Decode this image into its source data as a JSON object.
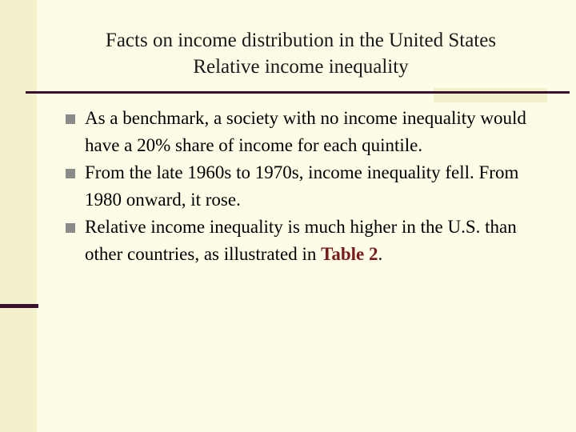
{
  "slide": {
    "title_line1": "Facts on income distribution in the United States",
    "title_line2": "Relative income inequality",
    "bullets": [
      "As a benchmark, a society with no income inequality would have a 20% share of income for each quintile.",
      "From the late 1960s to 1970s, income inequality fell.  From 1980 onward, it rose.",
      "Relative income inequality is much higher in the U.S. than other countries, as illustrated in "
    ],
    "bullet3_link": "Table 2",
    "bullet3_end": ".",
    "colors": {
      "background": "#fdfde7",
      "band": "#f2f1cc",
      "rule": "#3a1030",
      "link": "#7a1a1a",
      "bullet": "#8a8a8a"
    },
    "icons": {
      "bullet": "square-bullet-icon"
    }
  }
}
